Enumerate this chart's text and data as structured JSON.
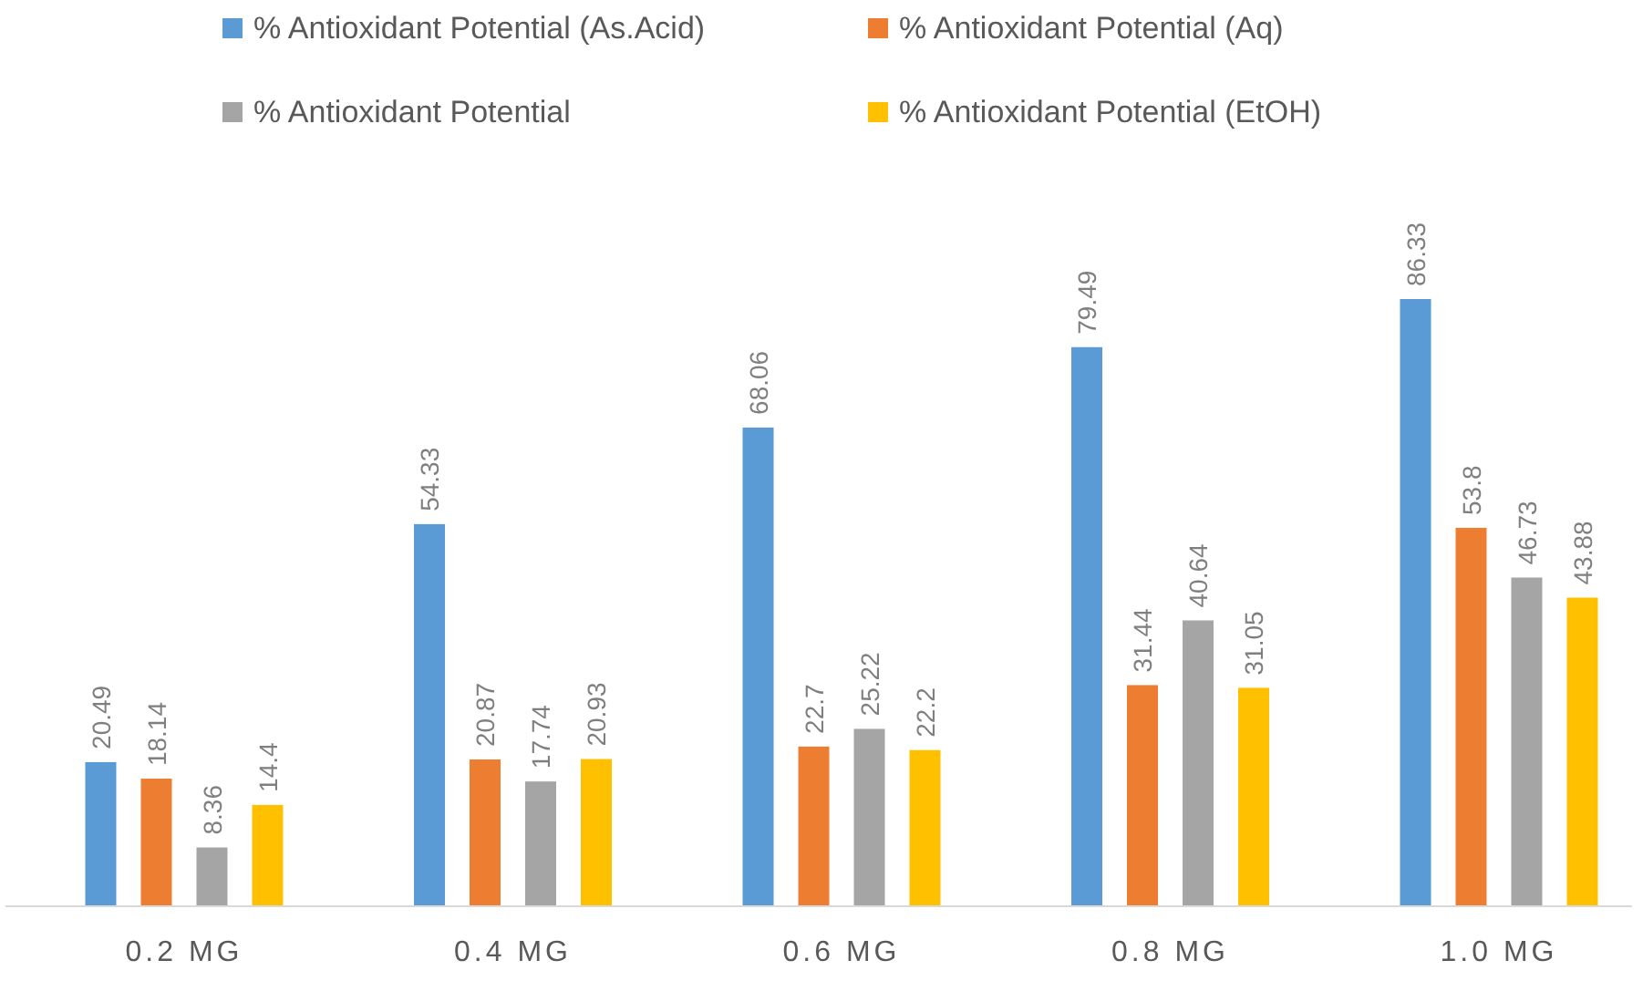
{
  "chart_data": {
    "type": "bar",
    "categories": [
      "0.2 MG",
      "0.4 MG",
      "0.6 MG",
      "0.8 MG",
      "1.0 MG"
    ],
    "series": [
      {
        "name": "% Antioxidant Potential (As.Acid)",
        "color": "#5b9bd5",
        "values": [
          20.49,
          54.33,
          68.06,
          79.49,
          86.33
        ]
      },
      {
        "name": "% Antioxidant Potential (Aq)",
        "color": "#ed7d31",
        "values": [
          18.14,
          20.87,
          22.7,
          31.44,
          53.8
        ]
      },
      {
        "name": "% Antioxidant Potential",
        "color": "#a5a5a5",
        "values": [
          8.36,
          17.74,
          25.22,
          40.64,
          46.73
        ]
      },
      {
        "name": "% Antioxidant Potential (EtOH)",
        "color": "#ffc000",
        "values": [
          14.4,
          20.93,
          22.2,
          31.05,
          43.88
        ]
      }
    ],
    "data_labels": true,
    "legend": "top",
    "grid": false
  }
}
